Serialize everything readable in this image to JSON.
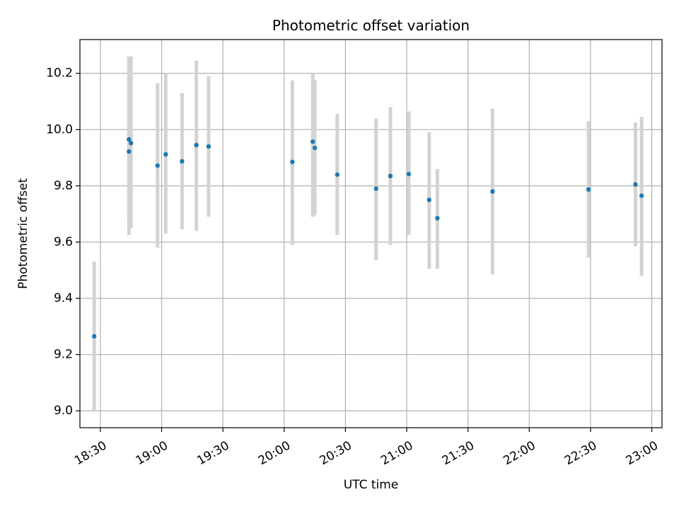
{
  "chart_data": {
    "type": "scatter",
    "title": "Photometric offset variation",
    "xlabel": "UTC time",
    "ylabel": "Photometric offset",
    "xlim": [
      "18:20",
      "23:05"
    ],
    "ylim": [
      8.94,
      10.32
    ],
    "x_ticks": [
      "18:30",
      "19:00",
      "19:30",
      "20:00",
      "20:30",
      "21:00",
      "21:30",
      "22:00",
      "22:30",
      "23:00"
    ],
    "y_ticks": [
      "9.0",
      "9.2",
      "9.4",
      "9.6",
      "9.8",
      "10.0",
      "10.2"
    ],
    "grid": true,
    "colors": {
      "point": "#1f77b4",
      "error_bar": "#d3d3d3",
      "grid": "#b0b0b0"
    },
    "series": [
      {
        "points": [
          {
            "x": "18:27",
            "y": 9.265,
            "low": 9.0,
            "high": 9.53
          },
          {
            "x": "18:44",
            "y": 9.965,
            "low": 9.68,
            "high": 10.26
          },
          {
            "x": "18:44",
            "y": 9.922,
            "low": 9.625,
            "high": 10.26
          },
          {
            "x": "18:45",
            "y": 9.952,
            "low": 9.65,
            "high": 10.26
          },
          {
            "x": "18:58",
            "y": 9.872,
            "low": 9.58,
            "high": 10.165
          },
          {
            "x": "19:02",
            "y": 9.912,
            "low": 9.63,
            "high": 10.2
          },
          {
            "x": "19:10",
            "y": 9.887,
            "low": 9.645,
            "high": 10.13
          },
          {
            "x": "19:17",
            "y": 9.945,
            "low": 9.64,
            "high": 10.245
          },
          {
            "x": "19:23",
            "y": 9.94,
            "low": 9.69,
            "high": 10.19
          },
          {
            "x": "20:04",
            "y": 9.885,
            "low": 9.59,
            "high": 10.175
          },
          {
            "x": "20:14",
            "y": 9.957,
            "low": 9.69,
            "high": 10.2
          },
          {
            "x": "20:15",
            "y": 9.935,
            "low": 9.695,
            "high": 10.175
          },
          {
            "x": "20:26",
            "y": 9.84,
            "low": 9.625,
            "high": 10.055
          },
          {
            "x": "20:45",
            "y": 9.79,
            "low": 9.535,
            "high": 10.04
          },
          {
            "x": "20:52",
            "y": 9.835,
            "low": 9.59,
            "high": 10.08
          },
          {
            "x": "21:01",
            "y": 9.842,
            "low": 9.625,
            "high": 10.065
          },
          {
            "x": "21:11",
            "y": 9.75,
            "low": 9.505,
            "high": 9.99
          },
          {
            "x": "21:15",
            "y": 9.685,
            "low": 9.505,
            "high": 9.86
          },
          {
            "x": "21:42",
            "y": 9.78,
            "low": 9.485,
            "high": 10.075
          },
          {
            "x": "22:29",
            "y": 9.787,
            "low": 9.545,
            "high": 10.03
          },
          {
            "x": "22:52",
            "y": 9.805,
            "low": 9.585,
            "high": 10.025
          },
          {
            "x": "22:55",
            "y": 9.765,
            "low": 9.48,
            "high": 10.045
          }
        ]
      }
    ]
  }
}
